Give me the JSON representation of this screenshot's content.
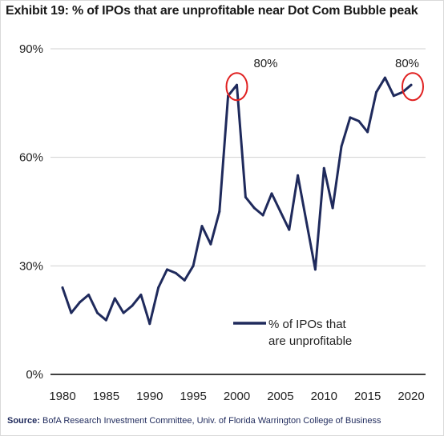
{
  "title": "Exhibit 19: % of IPOs that are unprofitable near Dot Com Bubble peak",
  "source_label": "Source:",
  "source_text": "BofA Research Investment Committee, Univ. of Florida Warrington College of Business",
  "colors": {
    "series": "#1f2a5c",
    "highlight": "#e02020",
    "grid": "#d0d0d0",
    "axis": "#000000"
  },
  "chart_data": {
    "type": "line",
    "title": "Exhibit 19: % of IPOs that are unprofitable near Dot Com Bubble peak",
    "xlabel": "",
    "ylabel": "",
    "xlim": [
      1980,
      2020
    ],
    "ylim": [
      0,
      90
    ],
    "grid": "horizontal",
    "legend_position": "lower-right",
    "x_ticks": [
      1980,
      1985,
      1990,
      1995,
      2000,
      2005,
      2010,
      2015,
      2020
    ],
    "y_ticks": [
      0,
      30,
      60,
      90
    ],
    "y_tick_labels": [
      "0%",
      "30%",
      "60%",
      "90%"
    ],
    "series": [
      {
        "name": "% of IPOs that are unprofitable",
        "x": [
          1980,
          1981,
          1982,
          1983,
          1984,
          1985,
          1986,
          1987,
          1988,
          1989,
          1990,
          1991,
          1992,
          1993,
          1994,
          1995,
          1996,
          1997,
          1998,
          1999,
          2000,
          2001,
          2002,
          2003,
          2004,
          2005,
          2006,
          2007,
          2008,
          2009,
          2010,
          2011,
          2012,
          2013,
          2014,
          2015,
          2016,
          2017,
          2018,
          2019,
          2020
        ],
        "values": [
          24,
          17,
          20,
          22,
          17,
          15,
          21,
          17,
          19,
          22,
          14,
          24,
          29,
          28,
          26,
          30,
          41,
          36,
          45,
          77,
          80,
          49,
          46,
          44,
          50,
          45,
          40,
          55,
          42,
          29,
          57,
          46,
          63,
          71,
          70,
          67,
          78,
          82,
          77,
          78,
          80
        ]
      }
    ],
    "annotations": [
      {
        "label": "80%",
        "x": 2000,
        "y": 80
      },
      {
        "label": "80%",
        "x": 2020,
        "y": 80
      }
    ]
  }
}
